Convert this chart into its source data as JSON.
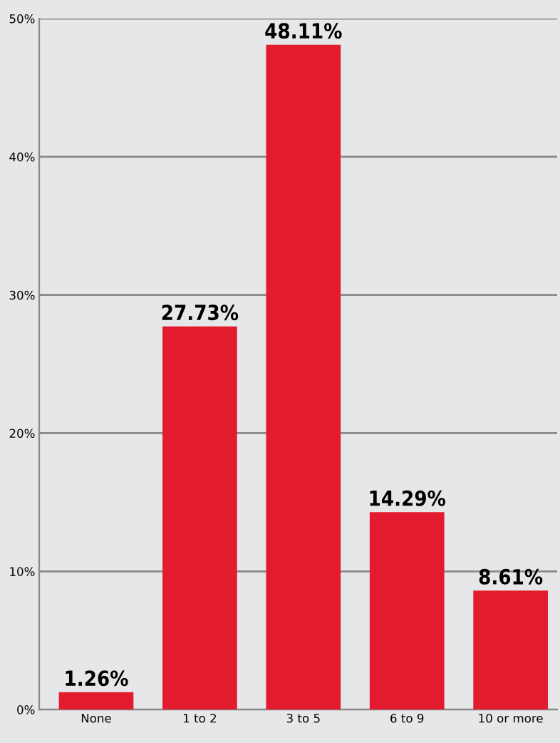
{
  "chart_data": {
    "type": "bar",
    "categories": [
      "None",
      "1 to 2",
      "3 to 5",
      "6 to 9",
      "10 or more"
    ],
    "values": [
      1.26,
      27.73,
      48.11,
      14.29,
      8.61
    ],
    "value_labels": [
      "1.26%",
      "27.73%",
      "48.11%",
      "14.29%",
      "8.61%"
    ],
    "color": "#e31b2e",
    "ylim": [
      0,
      50
    ],
    "yticks": [
      {
        "value": 0,
        "label": "0%"
      },
      {
        "value": 10,
        "label": "10%"
      },
      {
        "value": 20,
        "label": "20%"
      },
      {
        "value": 30,
        "label": "30%"
      },
      {
        "value": 40,
        "label": "40%"
      },
      {
        "value": 50,
        "label": "50%"
      }
    ],
    "grid": "y"
  }
}
